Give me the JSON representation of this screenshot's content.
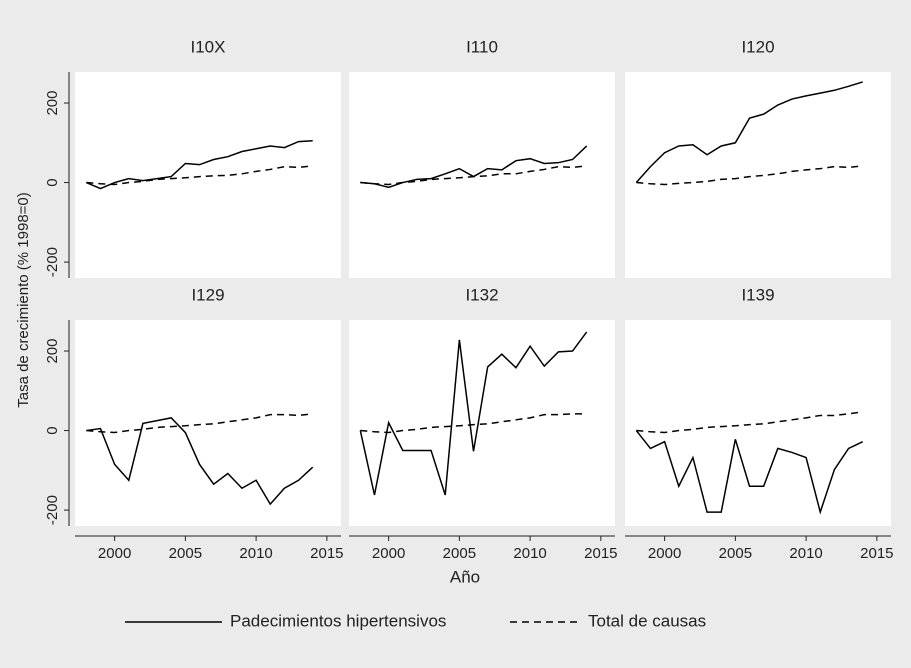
{
  "chart_data": {
    "type": "line",
    "xlabel": "Año",
    "ylabel": "Tasa de crecimiento  (% 1998=0)",
    "x": [
      1998,
      1999,
      2000,
      2001,
      2002,
      2003,
      2004,
      2005,
      2006,
      2007,
      2008,
      2009,
      2010,
      2011,
      2012,
      2013,
      2014
    ],
    "xlim": [
      1997.2,
      2016
    ],
    "xticks": [
      2000,
      2005,
      2010,
      2015
    ],
    "ylim": [
      -240,
      278
    ],
    "yticks": [
      -200,
      0,
      200
    ],
    "legend": [
      {
        "name": "Padecimientos hipertensivos",
        "color": "#000000",
        "dash": "solid"
      },
      {
        "name": "Total de causas",
        "color": "#000000",
        "dash": "dashed"
      }
    ],
    "panels": [
      {
        "title": "I10X",
        "series": [
          {
            "values": [
              0,
              -15,
              0,
              10,
              5,
              10,
              15,
              48,
              45,
              58,
              65,
              78,
              85,
              92,
              88,
              103,
              105
            ]
          },
          {
            "values": [
              0,
              -3,
              -5,
              0,
              3,
              8,
              10,
              12,
              15,
              17,
              18,
              22,
              28,
              33,
              40,
              38,
              42
            ]
          }
        ]
      },
      {
        "title": "I110",
        "series": [
          {
            "values": [
              0,
              -3,
              -12,
              0,
              8,
              10,
              22,
              35,
              15,
              35,
              32,
              55,
              60,
              48,
              50,
              58,
              92
            ]
          },
          {
            "values": [
              0,
              -3,
              -5,
              0,
              3,
              8,
              10,
              12,
              15,
              17,
              22,
              22,
              28,
              33,
              40,
              38,
              42
            ]
          }
        ]
      },
      {
        "title": "I120",
        "series": [
          {
            "values": [
              0,
              40,
              75,
              92,
              95,
              70,
              92,
              100,
              162,
              172,
              195,
              210,
              218,
              225,
              232,
              242,
              253
            ]
          },
          {
            "values": [
              0,
              -3,
              -5,
              -2,
              0,
              3,
              8,
              10,
              15,
              18,
              22,
              28,
              32,
              35,
              40,
              38,
              42
            ]
          }
        ]
      },
      {
        "title": "I129",
        "series": [
          {
            "values": [
              0,
              5,
              -85,
              -125,
              18,
              25,
              32,
              -5,
              -85,
              -135,
              -108,
              -145,
              -125,
              -185,
              -145,
              -125,
              -92
            ]
          },
          {
            "values": [
              0,
              -3,
              -5,
              0,
              3,
              8,
              10,
              12,
              15,
              17,
              22,
              27,
              32,
              40,
              40,
              38,
              42
            ]
          }
        ]
      },
      {
        "title": "I132",
        "series": [
          {
            "values": [
              0,
              -162,
              20,
              -50,
              -50,
              -50,
              -162,
              228,
              -52,
              160,
              192,
              158,
              212,
              162,
              198,
              200,
              248
            ]
          },
          {
            "values": [
              0,
              -3,
              -5,
              0,
              3,
              8,
              10,
              12,
              15,
              17,
              22,
              27,
              32,
              40,
              40,
              42,
              42
            ]
          }
        ]
      },
      {
        "title": "I139",
        "series": [
          {
            "values": [
              0,
              -45,
              -28,
              -140,
              -68,
              -205,
              -205,
              -22,
              -140,
              -140,
              -45,
              -55,
              -68,
              -205,
              -98,
              -45,
              -28
            ]
          },
          {
            "values": [
              0,
              -3,
              -5,
              0,
              3,
              8,
              10,
              12,
              15,
              17,
              22,
              27,
              32,
              38,
              38,
              42,
              47
            ]
          }
        ]
      }
    ]
  }
}
